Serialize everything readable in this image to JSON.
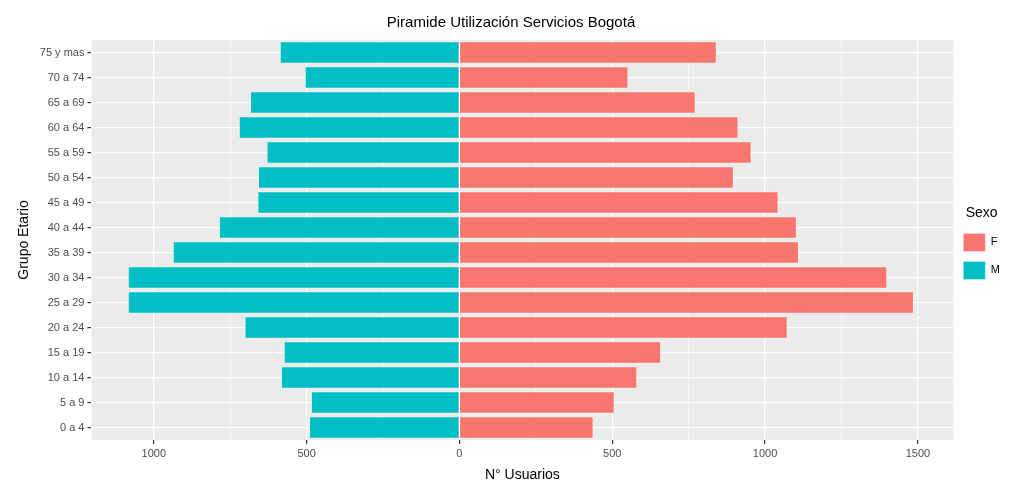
{
  "chart_data": {
    "type": "bar",
    "orientation": "horizontal",
    "stacked": true,
    "title": "Piramide Utilización Servicios Bogotá",
    "xlabel": "N° Usuarios",
    "ylabel": "Grupo Etario",
    "legend_title": "Sexo",
    "legend": "right",
    "grid": true,
    "categories": [
      "75 y mas",
      "70 a 74",
      "65 a 69",
      "60 a 64",
      "55 a 59",
      "50 a 54",
      "45 a 49",
      "40 a 44",
      "35 a 39",
      "30 a 34",
      "25 a 29",
      "20 a 24",
      "15 a 19",
      "10 a 14",
      "5 a 9",
      "0 a 4"
    ],
    "series": [
      {
        "name": "F",
        "color": "#f8766d",
        "values": [
          842,
          553,
          773,
          913,
          956,
          898,
          1044,
          1104,
          1111,
          1400,
          1487,
          1074,
          660,
          582,
          508,
          439
        ]
      },
      {
        "name": "M",
        "color": "#00bfc4",
        "values": [
          -588,
          -506,
          -685,
          -722,
          -631,
          -659,
          -661,
          -787,
          -938,
          -1085,
          -1085,
          -703,
          -575,
          -584,
          -486,
          -492
        ]
      }
    ],
    "xlim": [
      -1204,
      1616
    ],
    "xticks": [
      {
        "value": -1000,
        "label": "1000"
      },
      {
        "value": -750,
        "label": null
      },
      {
        "value": -500,
        "label": "500"
      },
      {
        "value": -250,
        "label": null
      },
      0,
      {
        "value": 250,
        "label": null
      },
      500,
      {
        "value": 750,
        "label": null
      },
      1000,
      {
        "value": 1250,
        "label": null
      },
      1500
    ]
  }
}
